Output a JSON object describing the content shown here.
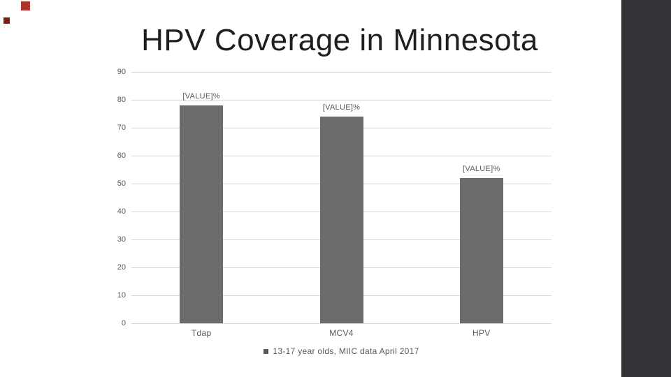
{
  "slide": {
    "title": "HPV Coverage in Minnesota",
    "accent_colors": {
      "side_band": "#333438",
      "square_top": "#ab352c",
      "square_bottom": "#7e1d17"
    }
  },
  "chart_data": {
    "type": "bar",
    "title": "HPV Coverage in Minnesota",
    "categories": [
      "Tdap",
      "MCV4",
      "HPV"
    ],
    "values": [
      78,
      74,
      52
    ],
    "data_labels": [
      "[VALUE]%",
      "[VALUE]%",
      "[VALUE]%"
    ],
    "legend": "13-17 year olds, MIIC data April 2017",
    "legend_position": "bottom",
    "xlabel": "",
    "ylabel": "",
    "ylim": [
      0,
      90
    ],
    "yticks": [
      0,
      10,
      20,
      30,
      40,
      50,
      60,
      70,
      80,
      90
    ],
    "grid": true,
    "colors": {
      "bar": "#6c6c6f",
      "gridline": "#d9d9d9",
      "labels": "#595959"
    }
  }
}
